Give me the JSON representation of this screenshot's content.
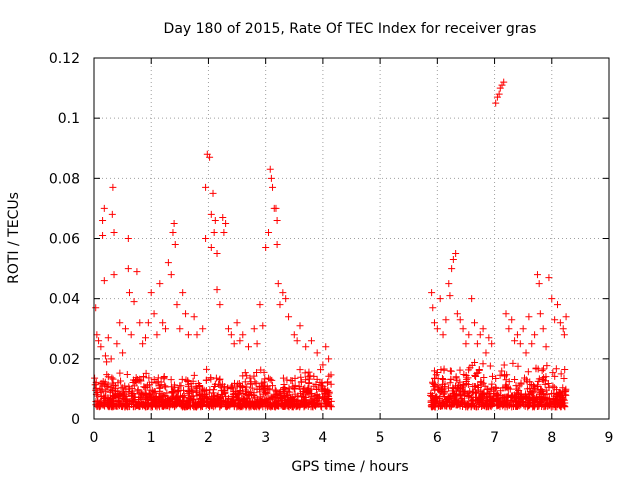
{
  "chart_data": {
    "type": "scatter",
    "title": "Day 180 of 2015, Rate Of TEC Index for receiver gras",
    "xlabel": "GPS time / hours",
    "ylabel": "ROTI / TECUs",
    "xlim": [
      0,
      9
    ],
    "ylim": [
      0,
      0.12
    ],
    "xticks": [
      "0",
      "1",
      "2",
      "3",
      "4",
      "5",
      "6",
      "7",
      "8",
      "9"
    ],
    "yticks": [
      "0",
      "0.02",
      "0.04",
      "0.06",
      "0.08",
      "0.1",
      "0.12"
    ],
    "grid": true,
    "marker": "+",
    "color": "#ff0000",
    "series": [
      {
        "name": "ROTI",
        "points": [
          [
            0.03,
            0.037
          ],
          [
            0.05,
            0.028
          ],
          [
            0.08,
            0.026
          ],
          [
            0.12,
            0.024
          ],
          [
            0.15,
            0.066
          ],
          [
            0.15,
            0.061
          ],
          [
            0.18,
            0.07
          ],
          [
            0.18,
            0.046
          ],
          [
            0.2,
            0.021
          ],
          [
            0.22,
            0.019
          ],
          [
            0.25,
            0.027
          ],
          [
            0.3,
            0.02
          ],
          [
            0.32,
            0.068
          ],
          [
            0.33,
            0.077
          ],
          [
            0.35,
            0.062
          ],
          [
            0.35,
            0.048
          ],
          [
            0.4,
            0.025
          ],
          [
            0.45,
            0.032
          ],
          [
            0.5,
            0.022
          ],
          [
            0.55,
            0.03
          ],
          [
            0.6,
            0.06
          ],
          [
            0.6,
            0.05
          ],
          [
            0.62,
            0.042
          ],
          [
            0.65,
            0.028
          ],
          [
            0.7,
            0.039
          ],
          [
            0.75,
            0.049
          ],
          [
            0.8,
            0.032
          ],
          [
            0.85,
            0.025
          ],
          [
            0.9,
            0.027
          ],
          [
            0.95,
            0.032
          ],
          [
            1.0,
            0.042
          ],
          [
            1.05,
            0.035
          ],
          [
            1.1,
            0.028
          ],
          [
            1.15,
            0.045
          ],
          [
            1.2,
            0.032
          ],
          [
            1.25,
            0.03
          ],
          [
            1.3,
            0.052
          ],
          [
            1.35,
            0.048
          ],
          [
            1.38,
            0.062
          ],
          [
            1.4,
            0.065
          ],
          [
            1.42,
            0.058
          ],
          [
            1.45,
            0.038
          ],
          [
            1.5,
            0.03
          ],
          [
            1.55,
            0.042
          ],
          [
            1.6,
            0.035
          ],
          [
            1.65,
            0.028
          ],
          [
            1.75,
            0.034
          ],
          [
            1.8,
            0.028
          ],
          [
            1.9,
            0.03
          ],
          [
            1.95,
            0.06
          ],
          [
            1.95,
            0.077
          ],
          [
            1.98,
            0.088
          ],
          [
            2.02,
            0.087
          ],
          [
            2.05,
            0.068
          ],
          [
            2.05,
            0.057
          ],
          [
            2.08,
            0.075
          ],
          [
            2.1,
            0.062
          ],
          [
            2.12,
            0.066
          ],
          [
            2.15,
            0.055
          ],
          [
            2.15,
            0.043
          ],
          [
            2.2,
            0.038
          ],
          [
            2.25,
            0.067
          ],
          [
            2.27,
            0.062
          ],
          [
            2.3,
            0.065
          ],
          [
            2.35,
            0.03
          ],
          [
            2.4,
            0.028
          ],
          [
            2.45,
            0.025
          ],
          [
            2.5,
            0.032
          ],
          [
            2.55,
            0.026
          ],
          [
            2.6,
            0.028
          ],
          [
            2.7,
            0.024
          ],
          [
            2.8,
            0.03
          ],
          [
            2.85,
            0.025
          ],
          [
            2.9,
            0.038
          ],
          [
            2.95,
            0.031
          ],
          [
            3.0,
            0.057
          ],
          [
            3.05,
            0.062
          ],
          [
            3.08,
            0.083
          ],
          [
            3.1,
            0.08
          ],
          [
            3.12,
            0.077
          ],
          [
            3.15,
            0.07
          ],
          [
            3.18,
            0.07
          ],
          [
            3.2,
            0.066
          ],
          [
            3.2,
            0.058
          ],
          [
            3.22,
            0.045
          ],
          [
            3.25,
            0.038
          ],
          [
            3.3,
            0.042
          ],
          [
            3.35,
            0.04
          ],
          [
            3.4,
            0.034
          ],
          [
            3.5,
            0.028
          ],
          [
            3.55,
            0.026
          ],
          [
            3.6,
            0.031
          ],
          [
            3.7,
            0.024
          ],
          [
            3.8,
            0.026
          ],
          [
            3.9,
            0.022
          ],
          [
            4.0,
            0.018
          ],
          [
            4.05,
            0.024
          ],
          [
            4.1,
            0.02
          ],
          [
            5.9,
            0.042
          ],
          [
            5.92,
            0.037
          ],
          [
            5.95,
            0.032
          ],
          [
            5.95,
            0.016
          ],
          [
            6.0,
            0.03
          ],
          [
            6.05,
            0.04
          ],
          [
            6.1,
            0.028
          ],
          [
            6.15,
            0.033
          ],
          [
            6.2,
            0.045
          ],
          [
            6.22,
            0.041
          ],
          [
            6.25,
            0.05
          ],
          [
            6.28,
            0.053
          ],
          [
            6.32,
            0.055
          ],
          [
            6.35,
            0.035
          ],
          [
            6.4,
            0.033
          ],
          [
            6.45,
            0.03
          ],
          [
            6.5,
            0.025
          ],
          [
            6.55,
            0.028
          ],
          [
            6.6,
            0.04
          ],
          [
            6.65,
            0.032
          ],
          [
            6.7,
            0.025
          ],
          [
            6.75,
            0.028
          ],
          [
            6.8,
            0.03
          ],
          [
            6.85,
            0.022
          ],
          [
            6.9,
            0.027
          ],
          [
            6.95,
            0.025
          ],
          [
            7.02,
            0.105
          ],
          [
            7.05,
            0.107
          ],
          [
            7.08,
            0.108
          ],
          [
            7.1,
            0.11
          ],
          [
            7.13,
            0.111
          ],
          [
            7.16,
            0.112
          ],
          [
            7.2,
            0.035
          ],
          [
            7.25,
            0.03
          ],
          [
            7.3,
            0.033
          ],
          [
            7.35,
            0.026
          ],
          [
            7.4,
            0.028
          ],
          [
            7.45,
            0.025
          ],
          [
            7.5,
            0.03
          ],
          [
            7.55,
            0.022
          ],
          [
            7.6,
            0.034
          ],
          [
            7.65,
            0.025
          ],
          [
            7.7,
            0.028
          ],
          [
            7.75,
            0.048
          ],
          [
            7.78,
            0.045
          ],
          [
            7.8,
            0.035
          ],
          [
            7.85,
            0.03
          ],
          [
            7.9,
            0.024
          ],
          [
            7.95,
            0.047
          ],
          [
            8.0,
            0.04
          ],
          [
            8.05,
            0.033
          ],
          [
            8.1,
            0.038
          ],
          [
            8.15,
            0.032
          ],
          [
            8.2,
            0.03
          ],
          [
            8.22,
            0.028
          ],
          [
            8.25,
            0.034
          ]
        ],
        "band_segments": [
          {
            "x_range": [
              0.0,
              4.15
            ],
            "y_range": [
              0.004,
              0.017
            ],
            "count": 1100
          },
          {
            "x_range": [
              5.88,
              8.25
            ],
            "y_range": [
              0.004,
              0.019
            ],
            "count": 650
          }
        ]
      }
    ]
  }
}
